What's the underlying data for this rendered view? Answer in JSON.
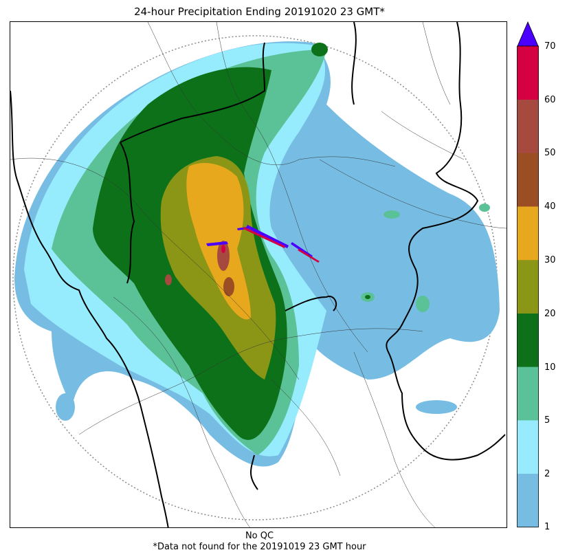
{
  "title": "24-hour Precipitation Ending 20191020 23 GMT*",
  "footer": {
    "qc_note": "No QC",
    "missing_note": "*Data not found for the 20191019 23 GMT hour"
  },
  "colorbar": {
    "ticks": [
      "1",
      "2",
      "5",
      "10",
      "20",
      "30",
      "40",
      "50",
      "60",
      "70"
    ],
    "colors": [
      "#77bde3",
      "#96ecfd",
      "#5bc196",
      "#0d7119",
      "#8b9616",
      "#e8a81d",
      "#9b4e24",
      "#a64a40",
      "#d40041"
    ],
    "overflow_color": "#4b00ff"
  },
  "legend_labels": {
    "tick_1": "1",
    "tick_2": "2",
    "tick_3": "5",
    "tick_4": "10",
    "tick_5": "20",
    "tick_6": "30",
    "tick_7": "40",
    "tick_8": "50",
    "tick_9": "60",
    "tick_10": "70"
  }
}
